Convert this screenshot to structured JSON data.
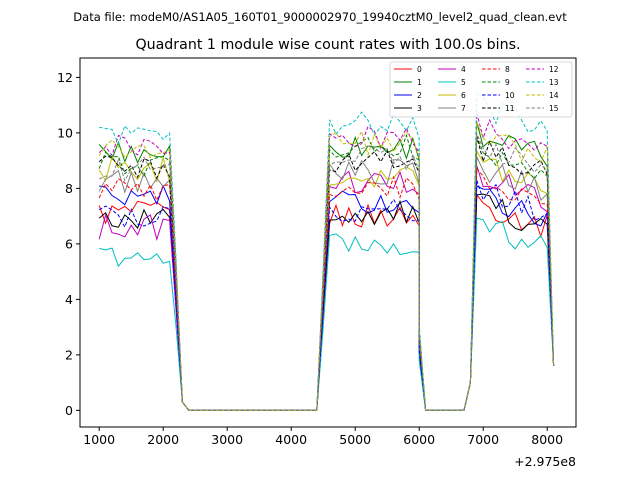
{
  "suptitle": "Data file: modeM0/AS1A05_160T01_9000002970_19940cztM0_level2_quad_clean.evt",
  "chart_data": {
    "type": "line",
    "title": "Quadrant 1 module wise count rates with 100.0s bins.",
    "xlabel": "",
    "ylabel": "",
    "x_offset_label": "+2.975e8",
    "xlim": [
      700,
      8450
    ],
    "ylim": [
      -0.6,
      12.7
    ],
    "xticks": [
      1000,
      2000,
      3000,
      4000,
      5000,
      6000,
      7000,
      8000
    ],
    "xtick_labels": [
      "1000",
      "2000",
      "3000",
      "4000",
      "5000",
      "6000",
      "7000",
      "8000"
    ],
    "yticks": [
      0,
      2,
      4,
      6,
      8,
      10,
      12
    ],
    "ytick_labels": [
      "0",
      "2",
      "4",
      "6",
      "8",
      "10",
      "12"
    ],
    "grid": false,
    "legend_position": "top-right",
    "legend_columns": 4,
    "x_units": "seconds (offset from 2.975e8)",
    "bin_width": 100,
    "segments": [
      {
        "start": 1000,
        "end": 2300
      },
      {
        "start": 2400,
        "end": 4400
      },
      {
        "start": 4500,
        "end": 6000
      },
      {
        "start": 6100,
        "end": 6800
      },
      {
        "start": 6900,
        "end": 8100
      }
    ],
    "series": [
      {
        "name": "0",
        "color": "#ff0000",
        "dash": "solid",
        "levels": [
          7.1,
          7.0,
          7.4
        ]
      },
      {
        "name": "1",
        "color": "#008000",
        "dash": "solid",
        "levels": [
          9.3,
          9.5,
          9.9
        ]
      },
      {
        "name": "2",
        "color": "#0000ff",
        "dash": "solid",
        "levels": [
          7.7,
          7.5,
          7.7
        ]
      },
      {
        "name": "3",
        "color": "#000000",
        "dash": "solid",
        "levels": [
          6.9,
          7.1,
          7.4
        ]
      },
      {
        "name": "4",
        "color": "#bf00bf",
        "dash": "solid",
        "levels": [
          6.6,
          8.2,
          8.4
        ]
      },
      {
        "name": "5",
        "color": "#00bfbf",
        "dash": "solid",
        "levels": [
          5.5,
          6.0,
          6.6
        ]
      },
      {
        "name": "6",
        "color": "#bfbf00",
        "dash": "solid",
        "levels": [
          8.7,
          8.5,
          8.9
        ]
      },
      {
        "name": "7",
        "color": "#808080",
        "dash": "solid",
        "levels": [
          8.3,
          8.6,
          8.7
        ]
      },
      {
        "name": "8",
        "color": "#ff0000",
        "dash": "dashed",
        "levels": [
          7.9,
          8.0,
          8.3
        ]
      },
      {
        "name": "9",
        "color": "#008000",
        "dash": "dashed",
        "levels": [
          8.9,
          9.5,
          9.4
        ]
      },
      {
        "name": "10",
        "color": "#0000ff",
        "dash": "dashed",
        "levels": [
          7.0,
          7.2,
          7.9
        ]
      },
      {
        "name": "11",
        "color": "#000000",
        "dash": "dashed",
        "levels": [
          8.8,
          9.0,
          9.4
        ]
      },
      {
        "name": "12",
        "color": "#bf00bf",
        "dash": "dashed",
        "levels": [
          9.6,
          9.8,
          10.2
        ]
      },
      {
        "name": "13",
        "color": "#00bfbf",
        "dash": "dashed",
        "levels": [
          10.0,
          10.3,
          10.9
        ]
      },
      {
        "name": "14",
        "color": "#bfbf00",
        "dash": "dashed",
        "levels": [
          9.4,
          9.6,
          9.9
        ]
      },
      {
        "name": "15",
        "color": "#808080",
        "dash": "dashed",
        "levels": [
          8.7,
          9.1,
          9.5
        ]
      }
    ]
  }
}
